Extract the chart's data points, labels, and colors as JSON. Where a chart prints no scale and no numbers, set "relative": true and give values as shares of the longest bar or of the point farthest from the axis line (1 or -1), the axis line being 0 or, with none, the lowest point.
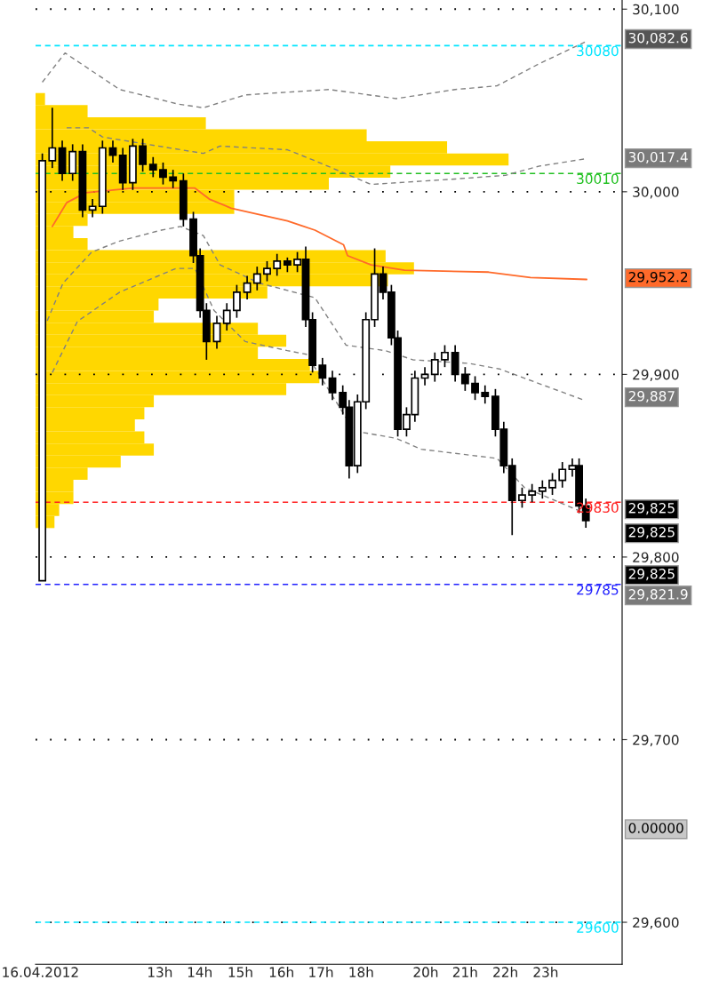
{
  "chart_data": [
    {
      "type": "bar",
      "orientation": "horizontal",
      "relative": true,
      "color": "#ffd700",
      "categories": [
        null,
        null,
        null,
        null,
        null,
        null,
        null,
        null,
        null,
        null,
        null,
        null,
        null,
        null,
        null,
        null,
        null,
        null,
        null,
        null,
        null,
        null,
        null,
        null,
        null,
        null,
        null,
        null,
        null,
        null,
        null,
        null,
        null,
        null,
        null,
        null
      ],
      "values": [
        0.02,
        0.11,
        0.36,
        0.7,
        0.87,
        1,
        0.75,
        0.62,
        0.42,
        0.42,
        0.11,
        0.08,
        0.11,
        0.74,
        0.8,
        0.745,
        0.49,
        0.26,
        0.25,
        0.47,
        0.53,
        0.47,
        0.58,
        0.6,
        0.53,
        0.25,
        0.23,
        0.21,
        0.23,
        0.25,
        0.18,
        0.11,
        0.08,
        0.08,
        0.05,
        0.04
      ]
    },
    {
      "type": "candlestick",
      "grid": "y",
      "legend": false,
      "x": [
        10.05,
        10.3,
        10.55,
        10.81,
        11.06,
        11.31,
        11.56,
        11.82,
        12.07,
        12.32,
        12.57,
        12.83,
        13.08,
        13.33,
        13.59,
        13.84,
        14.01,
        14.17,
        14.43,
        14.68,
        14.93,
        15.19,
        15.44,
        15.69,
        15.94,
        16.2,
        16.45,
        16.66,
        16.83,
        17.08,
        17.33,
        17.59,
        17.75,
        17.96,
        18.17,
        18.39,
        18.6,
        18.81,
        18.97,
        19.19,
        19.4,
        19.65,
        19.9,
        20.15,
        20.41,
        20.66,
        20.91,
        21.16,
        21.42,
        21.63,
        21.84,
        22.09,
        22.34,
        22.6,
        22.85,
        23.1,
        23.35,
        23.52,
        23.69
      ],
      "ohlc": [
        [
          29787,
          30021,
          29787,
          30017
        ],
        [
          30017,
          30046,
          30013,
          30024
        ],
        [
          30024,
          30028,
          30006,
          30010
        ],
        [
          30010,
          30026,
          30006,
          30022
        ],
        [
          30022,
          30026,
          29986,
          29990
        ],
        [
          29990,
          29996,
          29986,
          29992
        ],
        [
          29992,
          30028,
          29988,
          30024
        ],
        [
          30024,
          30028,
          30016,
          30020
        ],
        [
          30020,
          30024,
          30001,
          30005
        ],
        [
          30005,
          30029,
          30001,
          30025
        ],
        [
          30025,
          30029,
          30011,
          30015
        ],
        [
          30015,
          30019,
          30008,
          30012
        ],
        [
          30012,
          30016,
          30004,
          30008
        ],
        [
          30008,
          30012,
          30002,
          30006
        ],
        [
          30006,
          30010,
          29981,
          29985
        ],
        [
          29985,
          29989,
          29961,
          29965
        ],
        [
          29965,
          29969,
          29931,
          29935
        ],
        [
          29935,
          29939,
          29908,
          29918
        ],
        [
          29918,
          29932,
          29914,
          29928
        ],
        [
          29928,
          29939,
          29924,
          29935
        ],
        [
          29935,
          29949,
          29931,
          29945
        ],
        [
          29945,
          29954,
          29941,
          29950
        ],
        [
          29950,
          29959,
          29946,
          29955
        ],
        [
          29955,
          29962,
          29951,
          29958
        ],
        [
          29958,
          29966,
          29954,
          29962
        ],
        [
          29962,
          29964,
          29956,
          29960
        ],
        [
          29960,
          29967,
          29956,
          29963
        ],
        [
          29963,
          29970,
          29926,
          29930
        ],
        [
          29930,
          29934,
          29901,
          29905
        ],
        [
          29905,
          29909,
          29894,
          29898
        ],
        [
          29898,
          29902,
          29886,
          29890
        ],
        [
          29890,
          29894,
          29878,
          29882
        ],
        [
          29882,
          29886,
          29843,
          29850
        ],
        [
          29850,
          29889,
          29846,
          29885
        ],
        [
          29885,
          29934,
          29881,
          29930
        ],
        [
          29930,
          29969,
          29926,
          29955
        ],
        [
          29955,
          29959,
          29941,
          29945
        ],
        [
          29945,
          29949,
          29916,
          29920
        ],
        [
          29920,
          29924,
          29866,
          29870
        ],
        [
          29870,
          29882,
          29866,
          29878
        ],
        [
          29878,
          29902,
          29874,
          29898
        ],
        [
          29898,
          29904,
          29894,
          29900
        ],
        [
          29900,
          29912,
          29896,
          29908
        ],
        [
          29908,
          29916,
          29904,
          29912
        ],
        [
          29912,
          29916,
          29896,
          29900
        ],
        [
          29900,
          29904,
          29891,
          29895
        ],
        [
          29895,
          29899,
          29886,
          29890
        ],
        [
          29890,
          29894,
          29884,
          29888
        ],
        [
          29888,
          29892,
          29866,
          29870
        ],
        [
          29870,
          29874,
          29846,
          29850
        ],
        [
          29850,
          29854,
          29812,
          29831
        ],
        [
          29831,
          29838,
          29827,
          29834
        ],
        [
          29834,
          29840,
          29830,
          29836
        ],
        [
          29836,
          29842,
          29832,
          29838
        ],
        [
          29838,
          29846,
          29834,
          29842
        ],
        [
          29842,
          29852,
          29838,
          29848
        ],
        [
          29848,
          29854,
          29844,
          29850
        ],
        [
          29850,
          29854,
          29824,
          29828
        ],
        [
          29828,
          29832,
          29816,
          29820
        ]
      ],
      "series": [
        {
          "type": "line",
          "color": "#ff6a2a",
          "line_style": "solid",
          "x": [
            10.3,
            10.66,
            11.14,
            12.34,
            13.88,
            14.24,
            14.79,
            16.2,
            16.89,
            17.61,
            17.71,
            18.3,
            19.14,
            21.25,
            22.3,
            23.71
          ],
          "values": [
            29981,
            29994,
            29999.5,
            30002,
            30002,
            29996,
            29991,
            29984,
            29979,
            29971,
            29965,
            29960,
            29957,
            29956,
            29953,
            29952
          ]
        },
        {
          "type": "line",
          "color": "#808080",
          "line_style": "dashed",
          "x": [
            10.05,
            10.62,
            11.99,
            13.46,
            14.09,
            15.14,
            17.25,
            18.93,
            20.41,
            21.46,
            22.51,
            23.67
          ],
          "values": [
            30060,
            30076,
            30056,
            30048,
            30046,
            30053,
            30056,
            30051,
            30056,
            30058,
            30070,
            30082
          ]
        },
        {
          "type": "line",
          "color": "#808080",
          "line_style": "dashed",
          "x": [
            10.66,
            11.21,
            11.56,
            12.68,
            14.09,
            14.51,
            16.2,
            16.89,
            18.3,
            20.41,
            21.67,
            22.51,
            23.67
          ],
          "values": [
            30035,
            30035,
            30030,
            30026,
            30021,
            30025,
            30023,
            30017,
            30004,
            30007,
            30009,
            30014,
            30018
          ]
        },
        {
          "type": "line",
          "color": "#808080",
          "line_style": "dashed",
          "x": [
            10.09,
            10.57,
            11.29,
            11.99,
            13.04,
            13.52,
            14.09,
            14.51,
            15.5,
            16.89,
            17.67,
            18.66,
            19.35,
            20.76,
            21.52,
            23.63
          ],
          "values": [
            29925,
            29950,
            29967,
            29973,
            29979,
            29981,
            29976,
            29960,
            29950,
            29942,
            29916,
            29913,
            29908,
            29906,
            29903,
            29886
          ]
        },
        {
          "type": "line",
          "color": "#808080",
          "line_style": "dashed",
          "x": [
            10.3,
            10.93,
            11.99,
            13.4,
            13.88,
            14.36,
            15.14,
            16.2,
            16.68,
            17.88,
            18.93,
            19.56,
            21.46,
            22.15,
            23.56
          ],
          "values": [
            29901,
            29929,
            29945,
            29958,
            29958,
            29935,
            29918,
            29913,
            29911,
            29869,
            29865,
            29859,
            29854,
            29838,
            29825
          ]
        }
      ],
      "xlim": [
        9.88,
        24.6
      ],
      "xticks": [
        {
          "value": 10,
          "label": "16.04.2012"
        },
        {
          "value": 13,
          "label": "13h"
        },
        {
          "value": 14,
          "label": "14h"
        },
        {
          "value": 15.02,
          "label": "15h"
        },
        {
          "value": 16.05,
          "label": "16h"
        },
        {
          "value": 17.04,
          "label": "17h"
        },
        {
          "value": 18.05,
          "label": "18h"
        },
        {
          "value": 19.67,
          "label": "20h"
        },
        {
          "value": 20.66,
          "label": "21h"
        },
        {
          "value": 21.67,
          "label": "22h"
        },
        {
          "value": 22.68,
          "label": "23h"
        }
      ],
      "ylim": [
        29577,
        30105
      ],
      "yticks": [
        {
          "value": 29600,
          "label": "29,600"
        },
        {
          "value": 29700,
          "label": "29,700"
        },
        {
          "value": 29800,
          "label": "29,800"
        },
        {
          "value": 29900,
          "label": "29,900"
        },
        {
          "value": 30000,
          "label": "30,000"
        },
        {
          "value": 30100,
          "label": "30,100"
        }
      ],
      "ref_lines": [
        {
          "axis": "y",
          "value": 30080,
          "label": "30080",
          "color": "#00e5ff",
          "line_style": "dashed"
        },
        {
          "axis": "y",
          "value": 30010,
          "label": "30010",
          "color": "#22c022",
          "line_style": "dashed"
        },
        {
          "axis": "y",
          "value": 29830,
          "label": "29830",
          "color": "#ff2020",
          "line_style": "dashed"
        },
        {
          "axis": "y",
          "value": 29785,
          "label": "29785",
          "color": "#2020ff",
          "line_style": "dashed"
        },
        {
          "axis": "y",
          "value": 29600,
          "label": "29600",
          "color": "#00e5ff",
          "line_style": "dashed"
        }
      ],
      "annotations": [
        "30,082.6",
        "30,017.4",
        "29,952.2",
        "29,887",
        "29,825",
        "29,825",
        "29,825",
        "29,821.9",
        "0.00000"
      ]
    }
  ]
}
